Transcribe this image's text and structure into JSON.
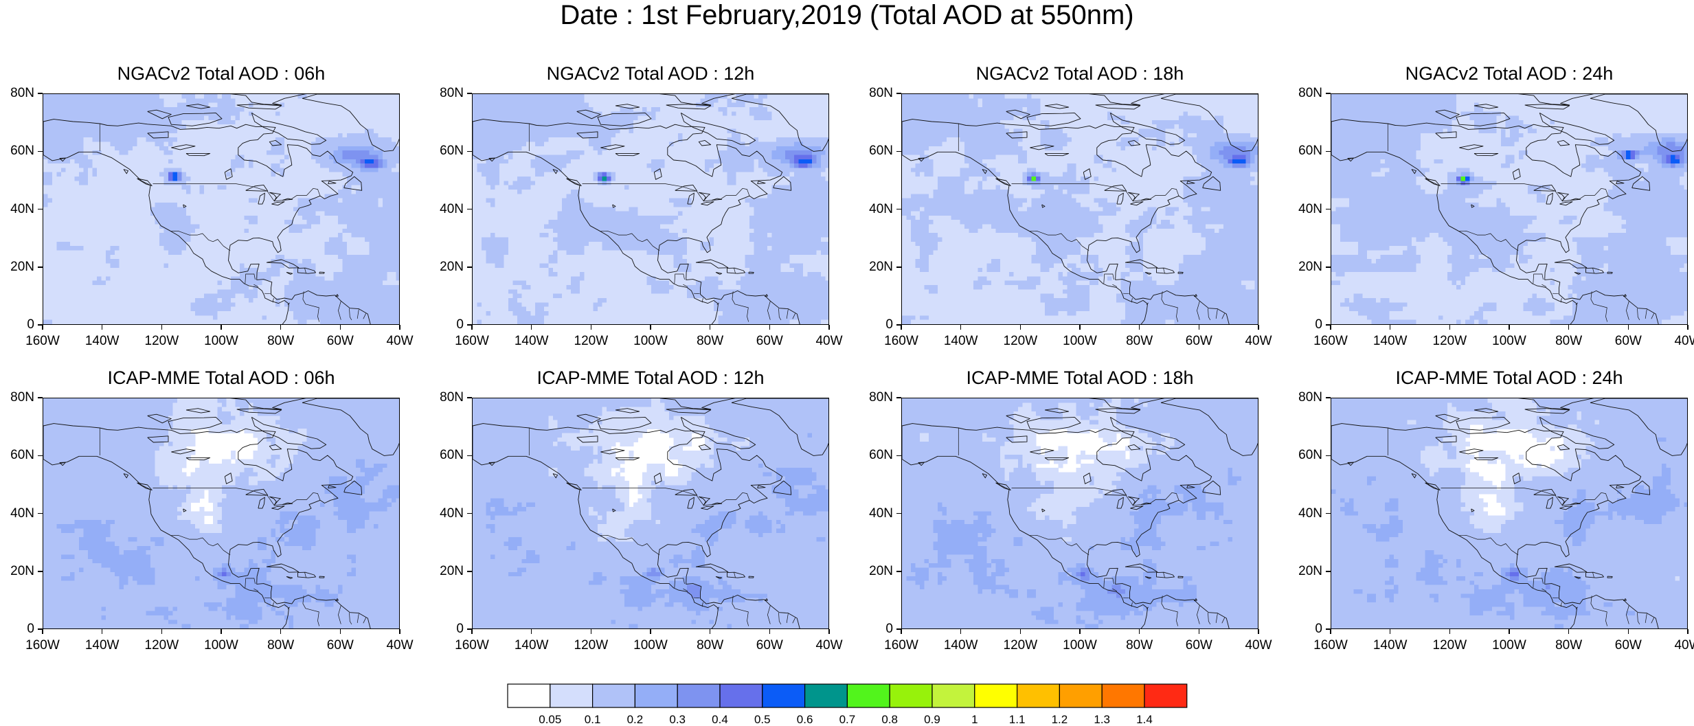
{
  "title": "Date : 1st February,2019 (Total AOD at 550nm)",
  "panels": [
    {
      "title": "NGACv2 Total AOD : 06h",
      "model": "ngac",
      "hour": 6
    },
    {
      "title": "NGACv2 Total AOD : 12h",
      "model": "ngac",
      "hour": 12
    },
    {
      "title": "NGACv2 Total AOD : 18h",
      "model": "ngac",
      "hour": 18
    },
    {
      "title": "NGACv2 Total AOD : 24h",
      "model": "ngac",
      "hour": 24
    },
    {
      "title": "ICAP-MME Total AOD : 06h",
      "model": "icap",
      "hour": 6
    },
    {
      "title": "ICAP-MME Total AOD : 12h",
      "model": "icap",
      "hour": 12
    },
    {
      "title": "ICAP-MME Total AOD : 18h",
      "model": "icap",
      "hour": 18
    },
    {
      "title": "ICAP-MME Total AOD : 24h",
      "model": "icap",
      "hour": 24
    }
  ],
  "map_extent": {
    "lon_min": -160,
    "lon_max": -40,
    "lat_min": 0,
    "lat_max": 80
  },
  "x_ticks": [
    {
      "lon": -160,
      "label": "160W"
    },
    {
      "lon": -140,
      "label": "140W"
    },
    {
      "lon": -120,
      "label": "120W"
    },
    {
      "lon": -100,
      "label": "100W"
    },
    {
      "lon": -80,
      "label": "80W"
    },
    {
      "lon": -60,
      "label": "60W"
    },
    {
      "lon": -40,
      "label": "40W"
    }
  ],
  "y_ticks": [
    {
      "lat": 80,
      "label": "80N"
    },
    {
      "lat": 60,
      "label": "60N"
    },
    {
      "lat": 40,
      "label": "40N"
    },
    {
      "lat": 20,
      "label": "20N"
    },
    {
      "lat": 0,
      "label": "0"
    }
  ],
  "colorbar": {
    "colors": [
      "#ffffff",
      "#d4defc",
      "#b0c2f8",
      "#94aef7",
      "#7e93f0",
      "#6670eb",
      "#0b5cf7",
      "#00958c",
      "#52f41c",
      "#97f20b",
      "#c3f33c",
      "#ffff00",
      "#ffc000",
      "#ff9f00",
      "#ff7700",
      "#ff2a14"
    ],
    "labels": [
      "0.05",
      "0.1",
      "0.2",
      "0.3",
      "0.4",
      "0.5",
      "0.6",
      "0.7",
      "0.8",
      "0.9",
      "1",
      "1.1",
      "1.2",
      "1.3",
      "1.4"
    ]
  }
}
